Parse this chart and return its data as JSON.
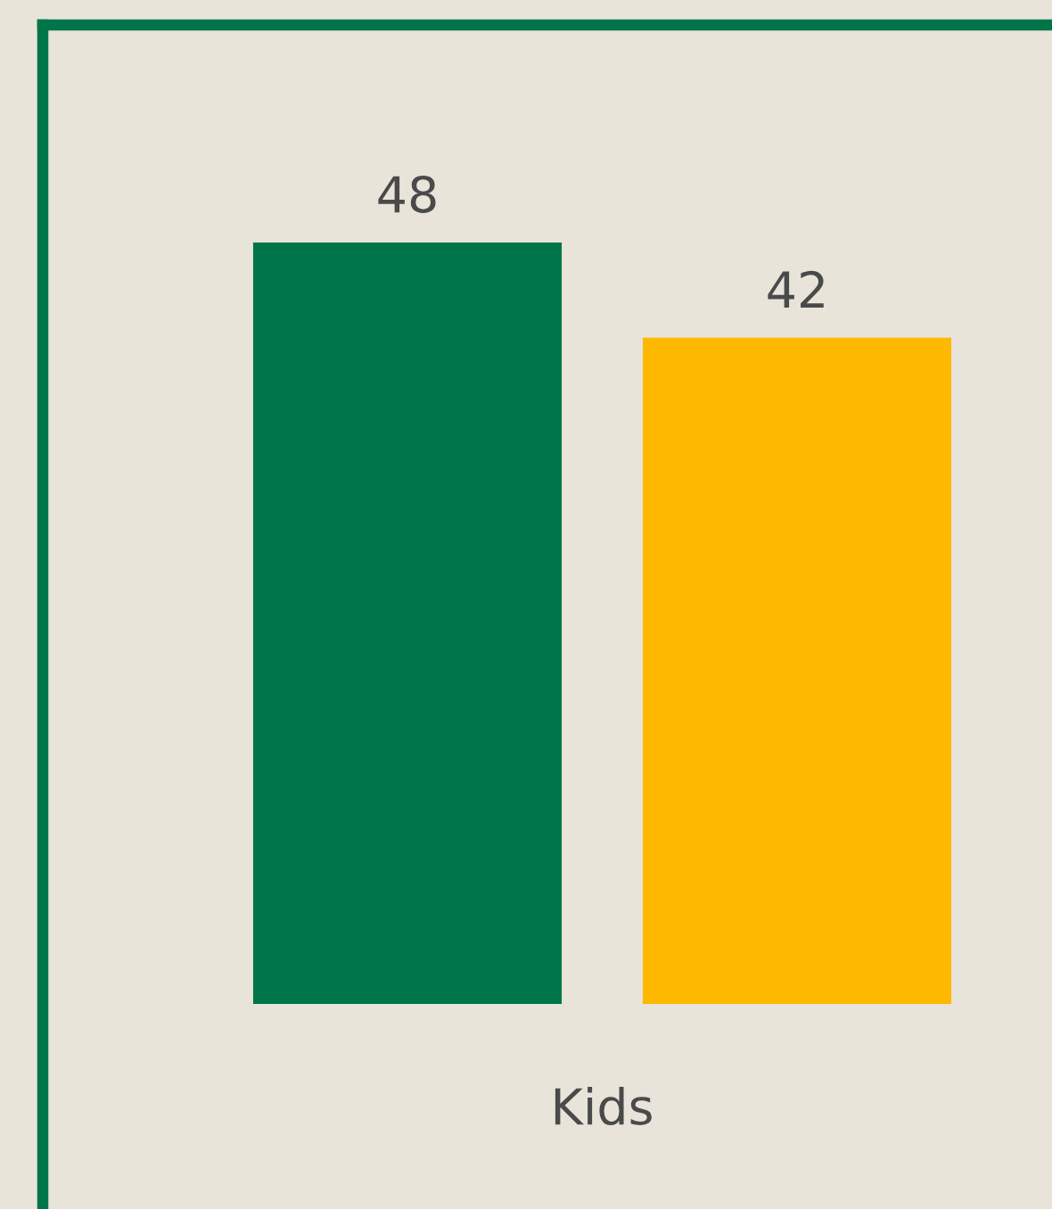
{
  "chart_data": {
    "type": "bar",
    "categories": [
      null,
      null
    ],
    "xlabel": "Kids",
    "values": [
      48,
      42
    ],
    "colors": [
      "#00754a",
      "#ffb800"
    ],
    "data_labels": true
  }
}
